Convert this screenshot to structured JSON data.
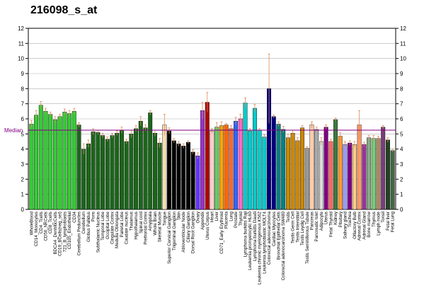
{
  "title": "216098_s_at",
  "median_label": "Median",
  "chart_data": {
    "type": "bar",
    "title": "216098_s_at",
    "xlabel": "",
    "ylabel": "",
    "ylim": [
      0,
      12
    ],
    "yticks": [
      0,
      1,
      2,
      3,
      4,
      5,
      6,
      7,
      8,
      9,
      10,
      11,
      12
    ],
    "grid": true,
    "median": 5.25,
    "categories": [
      "WholeBlood",
      "CD14_Monocytes",
      "CD4_Tcells",
      "CD56_NKCells",
      "CD8_Tcells",
      "BDCA4_DentriticCells",
      "CD19_BCells(neg_sel)",
      "721_B_lymphoblasts",
      "CD105_Endothelial",
      "CD34",
      "Cerebellum Peduncles",
      "Cerebellum",
      "Globus Pallidus",
      "Pons",
      "Subthalamic Nucleus",
      "Temporal Lobe",
      "Occipital Lobe",
      "Cingulate Cortex",
      "Medulla Oblongata",
      "Parietal Lobe",
      "Caudate nucleus",
      "Thalamus",
      "Hypothalamus",
      "Spinal cord",
      "Prefrontal Cortex",
      "Amygdala",
      "Whole Brain",
      "Skeletal Muscle",
      "Tongue",
      "Superior Cervical Ganglion",
      "Trigeminal Ganglion",
      "Skin",
      "Atrioventricular Node",
      "Ciliary Ganglion",
      "Dorsal Root Ganglion",
      "Ovary",
      "Appendix",
      "Uterus Corpus",
      "Heart",
      "Liver",
      "CD71_Early Erythroid",
      "Placenta",
      "Lung",
      "Prostate",
      "Thyroid",
      "Lymphoma burkitts Raji",
      "Leukemia promyelocytic HL60",
      "Lymphoma burkitts Daudi",
      "Leukemia chronic myelogenous K562",
      "Leukemia lymphoblastic MOLT4",
      "Colorectal adenocarcinoma",
      "Cardiac Myocytes",
      "Bronchial Epithelial Cells",
      "Colorectal adenocarcinoma SW480",
      "Testis",
      "Testis Germ Cell",
      "Testis Interstitial",
      "Testis Leydig Cell",
      "Testis Seminiferous Tubule",
      "Pancreas",
      "Pancreatic Islet",
      "Adipocyte",
      "Uterus",
      "Fetal Thyroid",
      "Kidney",
      "Pituitary",
      "Salivary gland",
      "Trachea",
      "Olfactory Bulb",
      "Adrenal Cortex",
      "Adrenal Gland",
      "Bone marrow",
      "Thymus",
      "Lymph node",
      "Tonsil",
      "Fetal liver",
      "Fetal Lung"
    ],
    "values": [
      5.65,
      6.25,
      6.9,
      6.5,
      6.3,
      5.95,
      6.15,
      6.45,
      6.35,
      6.5,
      5.6,
      4.0,
      4.35,
      5.15,
      5.1,
      4.9,
      4.65,
      4.9,
      5.05,
      5.25,
      4.5,
      5.0,
      5.35,
      5.85,
      5.4,
      6.4,
      5.05,
      4.4,
      5.6,
      5.2,
      4.55,
      4.35,
      4.2,
      4.45,
      3.8,
      3.55,
      6.55,
      7.1,
      5.2,
      5.45,
      5.55,
      5.6,
      5.35,
      5.85,
      6.0,
      7.05,
      5.2,
      6.7,
      5.25,
      4.8,
      8.0,
      6.15,
      5.65,
      5.3,
      4.75,
      5.05,
      4.55,
      5.4,
      4.05,
      5.6,
      5.3,
      4.5,
      5.45,
      4.5,
      5.95,
      4.85,
      4.3,
      4.4,
      4.3,
      5.6,
      4.3,
      4.75,
      4.7,
      4.7,
      5.45,
      4.6,
      3.9
    ],
    "errors": [
      0.25,
      0.3,
      0.25,
      0.2,
      0.15,
      0.2,
      0.15,
      0.2,
      0.2,
      0.2,
      0.15,
      0.35,
      0.25,
      0.2,
      0.15,
      0.15,
      0.15,
      0.15,
      0.15,
      0.2,
      0.15,
      0.25,
      0.2,
      0.3,
      0.2,
      0.15,
      0.2,
      0.3,
      0.7,
      0.2,
      0.15,
      0.15,
      0.15,
      0.1,
      0.15,
      0.2,
      0.55,
      0.65,
      0.15,
      0.3,
      0.25,
      0.1,
      0.2,
      0.25,
      0.3,
      0.35,
      0.15,
      0.25,
      0.1,
      0.15,
      2.3,
      0.1,
      0.15,
      0.2,
      0.25,
      0.2,
      0.2,
      0.15,
      0.1,
      0.2,
      0.15,
      0.25,
      0.15,
      0.15,
      0.1,
      0.25,
      0.2,
      0.15,
      0.2,
      0.95,
      0.15,
      0.15,
      0.2,
      0.15,
      0.1,
      0.15,
      0.1
    ],
    "colors": [
      "#33cc33",
      "#33cc33",
      "#33cc33",
      "#33cc33",
      "#33cc33",
      "#33cc33",
      "#33cc33",
      "#33cc33",
      "#33cc33",
      "#33cc33",
      "#1a661a",
      "#1a661a",
      "#1a661a",
      "#1a661a",
      "#1a661a",
      "#1a661a",
      "#1a661a",
      "#1a661a",
      "#1a661a",
      "#1a661a",
      "#1a661a",
      "#1a661a",
      "#1a661a",
      "#1a661a",
      "#1a661a",
      "#1a661a",
      "#1a661a",
      "#1a661a",
      "#f5deb3",
      "#000000",
      "#000000",
      "#000000",
      "#000000",
      "#000000",
      "#000000",
      "#6633ff",
      "#9933cc",
      "#b30000",
      "#ffcccc",
      "#66cc66",
      "#ffa500",
      "#ff6600",
      "#ff6633",
      "#3366ff",
      "#ff66cc",
      "#00cccc",
      "#00cccc",
      "#00cccc",
      "#00cccc",
      "#00cccc",
      "#000080",
      "#000080",
      "#008080",
      "#008080",
      "#cc8800",
      "#cc8800",
      "#cc8800",
      "#cc8800",
      "#999999",
      "#ffccaa",
      "#aaaaaa",
      "#dddddd",
      "#800080",
      "#ff6666",
      "#3d7a3d",
      "#ff9933",
      "#9999ff",
      "#800080",
      "#ffcc88",
      "#ff9966",
      "#993399",
      "#88aa88",
      "#77cc77",
      "#aa8866",
      "#7a3d7a",
      "#224422",
      "#446644"
    ]
  }
}
